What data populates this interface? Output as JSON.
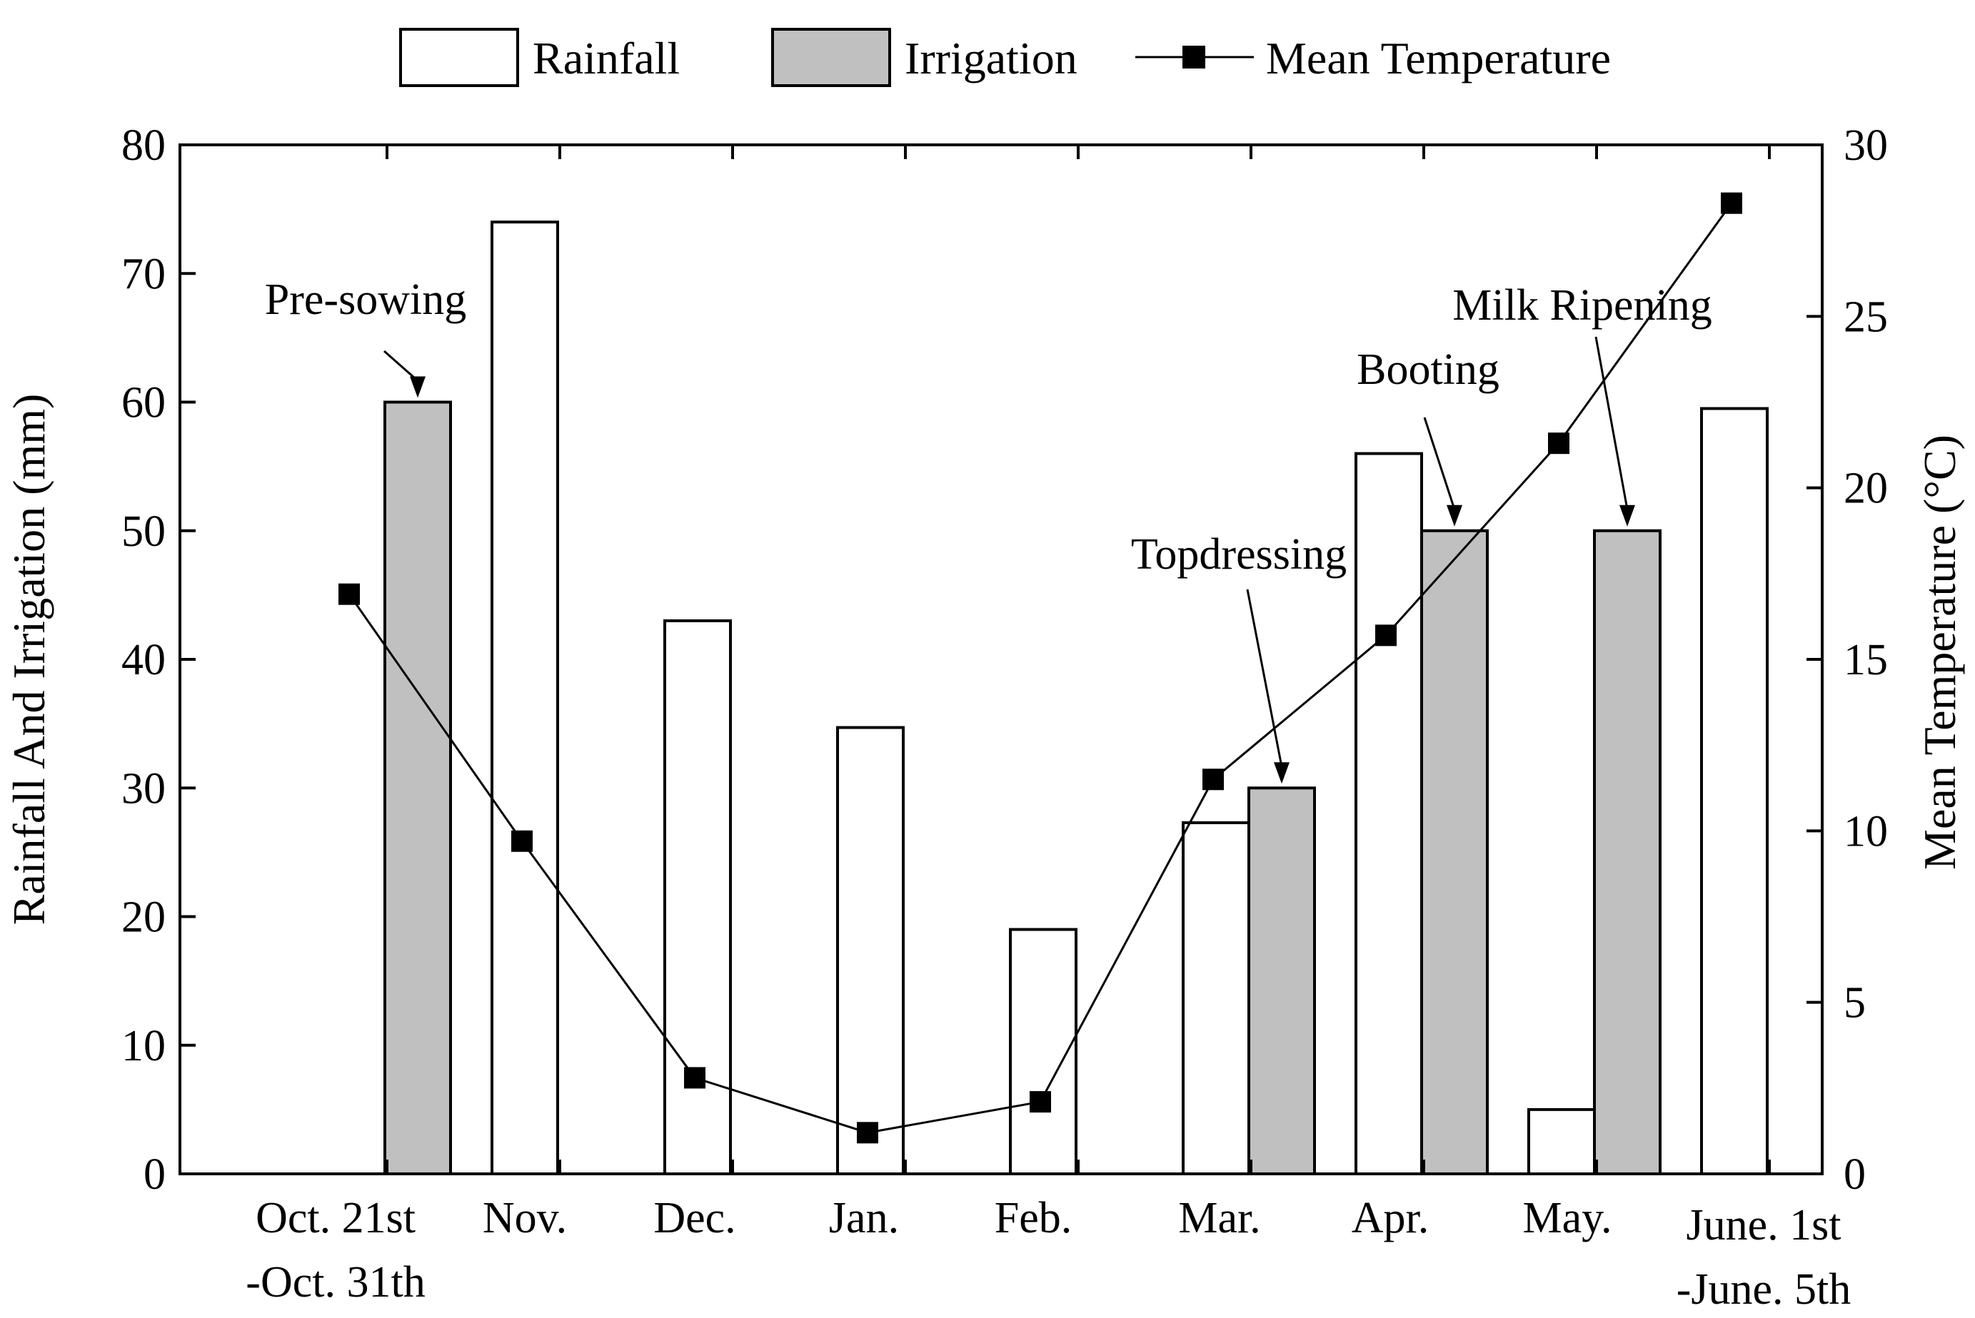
{
  "chart_data": {
    "type": "bar",
    "categories": [
      [
        "Oct. 21st",
        "-Oct. 31th"
      ],
      [
        "Nov."
      ],
      [
        "Dec."
      ],
      [
        "Jan."
      ],
      [
        "Feb."
      ],
      [
        "Mar."
      ],
      [
        "Apr."
      ],
      [
        "May."
      ],
      [
        "June. 1st",
        "-June. 5th"
      ]
    ],
    "series": [
      {
        "name": "Rainfall",
        "kind": "bar",
        "axis": "left",
        "color": "#ffffff",
        "values": [
          0,
          74,
          43,
          34.7,
          19,
          27.3,
          56,
          5,
          59.5
        ]
      },
      {
        "name": "Irrigation",
        "kind": "bar",
        "axis": "left",
        "color": "#c0c0c0",
        "values": [
          60,
          0,
          0,
          0,
          0,
          30,
          50,
          50,
          0
        ]
      },
      {
        "name": "Mean Temperature",
        "kind": "line",
        "axis": "right",
        "color": "#000000",
        "values": [
          16.9,
          9.7,
          2.8,
          1.2,
          2.1,
          11.5,
          15.7,
          21.3,
          28.3
        ]
      }
    ],
    "ylabel": "Rainfall And Irrigation (mm)",
    "y2label": "Mean Temperature (°C)",
    "ylim": [
      0,
      80
    ],
    "y2lim": [
      0,
      30
    ],
    "yticks": [
      0,
      10,
      20,
      30,
      40,
      50,
      60,
      70,
      80
    ],
    "y2ticks": [
      0,
      5,
      10,
      15,
      20,
      25,
      30
    ],
    "grid": false,
    "legend_position": "top",
    "annotations": [
      {
        "text": "Pre-sowing",
        "category": 0,
        "series": "Irrigation",
        "value": 60
      },
      {
        "text": "Topdressing",
        "category": 5,
        "series": "Irrigation",
        "value": 30
      },
      {
        "text": "Booting",
        "category": 6,
        "series": "Irrigation",
        "value": 50
      },
      {
        "text": "Milk Ripening",
        "category": 7,
        "series": "Irrigation",
        "value": 50
      }
    ]
  }
}
